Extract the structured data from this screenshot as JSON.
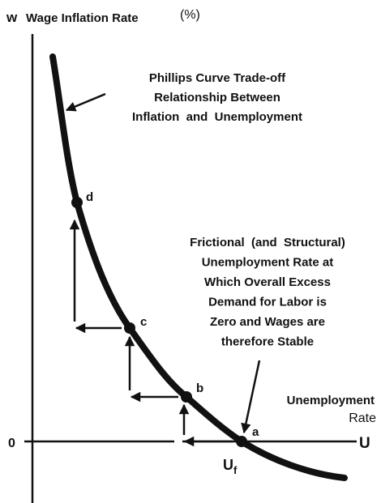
{
  "axes": {
    "y_symbol": "w",
    "y_label": "Wage Inflation Rate",
    "y_unit": "(%)",
    "origin": "0",
    "x_symbol": "U",
    "x_label": [
      "Unemployment",
      "Rate"
    ]
  },
  "annotations": [
    {
      "lines": [
        "Phillips Curve Trade-off",
        "Relationship Between",
        "Inflation  and  Unemployment"
      ]
    },
    {
      "lines": [
        "Frictional  (and  Structural)",
        "Unemployment Rate at",
        "Which Overall Excess",
        "Demand for Labor is",
        "Zero and Wages are",
        "therefore Stable"
      ]
    }
  ],
  "points": [
    {
      "label": "d"
    },
    {
      "label": "c"
    },
    {
      "label": "b"
    },
    {
      "label": "a"
    }
  ],
  "natural_rate": {
    "symbol": "U",
    "subscript": "f"
  }
}
